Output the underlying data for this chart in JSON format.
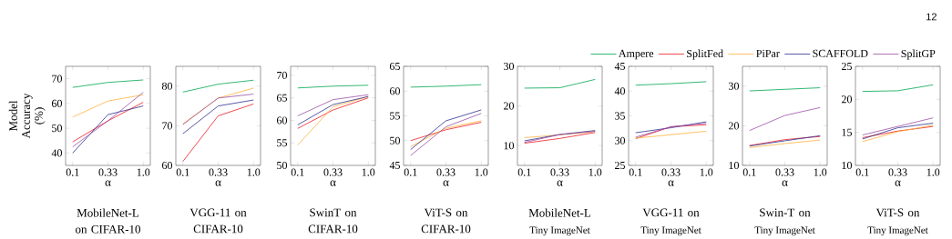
{
  "chart_data": [
    {
      "type": "line",
      "title": "MobileNet-L on CIFAR-10",
      "xlabel": "α",
      "ylabel": "Model Accuracy (%)",
      "categories": [
        "0.1",
        "0.33",
        "1.0"
      ],
      "ylim": [
        35,
        75
      ],
      "yticks": [
        40,
        50,
        60,
        70
      ],
      "series": [
        {
          "color": "#00a651",
          "values": [
            66.5,
            68.5,
            69.5
          ]
        },
        {
          "color": "#ed1c24",
          "values": [
            44.5,
            53,
            60.5
          ]
        },
        {
          "color": "#ffb13b",
          "values": [
            54.5,
            61,
            63.5
          ]
        },
        {
          "color": "#2e3192",
          "values": [
            40,
            55.5,
            59
          ]
        },
        {
          "color": "#9b4fa6",
          "values": [
            42.5,
            53,
            64.5
          ]
        }
      ]
    },
    {
      "type": "line",
      "title": "VGG-11 on CIFAR-10",
      "xlabel": "α",
      "categories": [
        "0.1",
        "0.33",
        "1.0"
      ],
      "ylim": [
        60,
        85
      ],
      "yticks": [
        60,
        70,
        80
      ],
      "series": [
        {
          "color": "#00a651",
          "values": [
            78.5,
            80.5,
            81.5
          ]
        },
        {
          "color": "#ed1c24",
          "values": [
            61,
            72.5,
            75.5
          ]
        },
        {
          "color": "#ffb13b",
          "values": [
            70.5,
            77,
            79.5
          ]
        },
        {
          "color": "#2e3192",
          "values": [
            68,
            75,
            76.5
          ]
        },
        {
          "color": "#9b4fa6",
          "values": [
            70.3,
            77,
            78
          ]
        }
      ]
    },
    {
      "type": "line",
      "title": "SwinT on CIFAR-10",
      "xlabel": "α",
      "categories": [
        "0.1",
        "0.33",
        "1.0"
      ],
      "ylim": [
        50,
        72
      ],
      "yticks": [
        50,
        55,
        60,
        65,
        70
      ],
      "series": [
        {
          "color": "#00a651",
          "values": [
            67.2,
            67.6,
            67.8
          ]
        },
        {
          "color": "#ed1c24",
          "values": [
            58.2,
            62.3,
            65
          ]
        },
        {
          "color": "#ffb13b",
          "values": [
            54.5,
            63,
            65.3
          ]
        },
        {
          "color": "#2e3192",
          "values": [
            59,
            63.5,
            65.3
          ]
        },
        {
          "color": "#9b4fa6",
          "values": [
            61,
            64.6,
            65.7
          ]
        }
      ]
    },
    {
      "type": "line",
      "title": "ViT-S on CIFAR-10",
      "xlabel": "α",
      "categories": [
        "0.1",
        "0.33",
        "1.0"
      ],
      "ylim": [
        45,
        65
      ],
      "yticks": [
        45,
        50,
        55,
        60,
        65
      ],
      "series": [
        {
          "color": "#00a651",
          "values": [
            60.8,
            61,
            61.3
          ]
        },
        {
          "color": "#ed1c24",
          "values": [
            50,
            52.2,
            53.7
          ]
        },
        {
          "color": "#ffb13b",
          "values": [
            48.8,
            52.5,
            54
          ]
        },
        {
          "color": "#2e3192",
          "values": [
            48.2,
            54,
            56.2
          ]
        },
        {
          "color": "#9b4fa6",
          "values": [
            47,
            52.8,
            55.5
          ]
        }
      ]
    },
    {
      "type": "line",
      "title": "MobileNet-L",
      "subtitle": "Tiny ImageNet",
      "xlabel": "α",
      "categories": [
        "0.1",
        "0.33",
        "1.0"
      ],
      "ylim": [
        5,
        30
      ],
      "yticks": [
        10,
        20,
        30
      ],
      "series": [
        {
          "color": "#00a651",
          "values": [
            24.5,
            24.6,
            26.7
          ]
        },
        {
          "color": "#ed1c24",
          "values": [
            10.6,
            11.8,
            13.3
          ]
        },
        {
          "color": "#ffb13b",
          "values": [
            12,
            12.7,
            13.5
          ]
        },
        {
          "color": "#2e3192",
          "values": [
            11.2,
            12.8,
            13.8
          ]
        },
        {
          "color": "#9b4fa6",
          "values": [
            10.8,
            12.8,
            13.6
          ]
        }
      ]
    },
    {
      "type": "line",
      "title": "VGG-11 on",
      "subtitle": "Tiny ImageNet",
      "xlabel": "α",
      "categories": [
        "0.1",
        "0.33",
        "1.0"
      ],
      "ylim": [
        25,
        45
      ],
      "yticks": [
        25,
        30,
        35,
        40,
        45
      ],
      "series": [
        {
          "color": "#00a651",
          "values": [
            41.2,
            41.5,
            41.9
          ]
        },
        {
          "color": "#ed1c24",
          "values": [
            30.4,
            32.8,
            33.2
          ]
        },
        {
          "color": "#ffb13b",
          "values": [
            30.5,
            31.2,
            31.9
          ]
        },
        {
          "color": "#2e3192",
          "values": [
            31.6,
            32.6,
            33.8
          ]
        },
        {
          "color": "#9b4fa6",
          "values": [
            30.7,
            32.8,
            33.5
          ]
        }
      ]
    },
    {
      "type": "line",
      "title": "Swin-T on",
      "subtitle": "Tiny ImageNet",
      "xlabel": "α",
      "categories": [
        "0.1",
        "0.33",
        "1.0"
      ],
      "ylim": [
        10,
        35
      ],
      "yticks": [
        10,
        20,
        30
      ],
      "series": [
        {
          "color": "#00a651",
          "values": [
            28.8,
            29.2,
            29.6
          ]
        },
        {
          "color": "#ed1c24",
          "values": [
            15,
            16.5,
            17.3
          ]
        },
        {
          "color": "#ffb13b",
          "values": [
            14.5,
            15.5,
            16.4
          ]
        },
        {
          "color": "#2e3192",
          "values": [
            14.9,
            16.2,
            17.5
          ]
        },
        {
          "color": "#9b4fa6",
          "values": [
            18.8,
            22.6,
            24.6
          ]
        }
      ]
    },
    {
      "type": "line",
      "title": "ViT-S on",
      "subtitle": "Tiny ImageNet",
      "xlabel": "α",
      "categories": [
        "0.1",
        "0.33",
        "1.0"
      ],
      "ylim": [
        10,
        25
      ],
      "yticks": [
        10,
        15,
        20,
        25
      ],
      "legend": "top",
      "annotations": [
        "12"
      ],
      "series": [
        {
          "name": "Ampere",
          "color": "#00a651",
          "values": [
            21.2,
            21.3,
            22.2
          ]
        },
        {
          "name": "SplitFed",
          "color": "#ed1c24",
          "values": [
            14.2,
            15.2,
            15.9
          ]
        },
        {
          "name": "PiPar",
          "color": "#ffb13b",
          "values": [
            13.6,
            15.1,
            16.1
          ]
        },
        {
          "name": "SCAFFOLD",
          "color": "#2e3192",
          "values": [
            14,
            15.7,
            16.4
          ]
        },
        {
          "name": "SplitGP",
          "color": "#9b4fa6",
          "values": [
            14.6,
            15.9,
            17.2
          ]
        }
      ]
    }
  ]
}
